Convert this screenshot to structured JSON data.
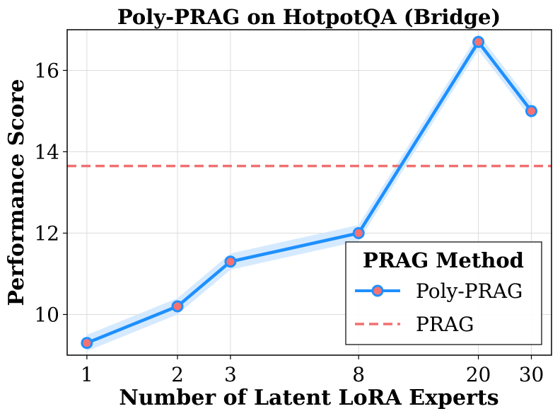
{
  "chart_data": {
    "type": "line",
    "title": "Poly-PRAG on HotpotQA (Bridge)",
    "xlabel": "Number of Latent LoRA Experts",
    "ylabel": "Performance Score",
    "x_scale": "log",
    "x": [
      1,
      2,
      3,
      8,
      20,
      30
    ],
    "x_tick_labels": [
      "1",
      "2",
      "3",
      "8",
      "20",
      "30"
    ],
    "y_ticks": [
      10,
      12,
      14,
      16
    ],
    "xlim": [
      0.86,
      35
    ],
    "ylim": [
      9.0,
      17.0
    ],
    "grid": true,
    "legend_title": "PRAG Method",
    "legend_position": "lower-right",
    "series": [
      {
        "name": "Poly-PRAG",
        "values": [
          9.3,
          10.2,
          11.3,
          12.0,
          16.7,
          15.0
        ],
        "band_halfwidth": 0.2,
        "color": "#1E90FF",
        "band_color": "#CFE6FF",
        "marker_color": "#F87171",
        "style": "solid-with-markers"
      },
      {
        "name": "PRAG",
        "constant": 13.65,
        "color": "#F07070",
        "style": "dashed"
      }
    ]
  }
}
